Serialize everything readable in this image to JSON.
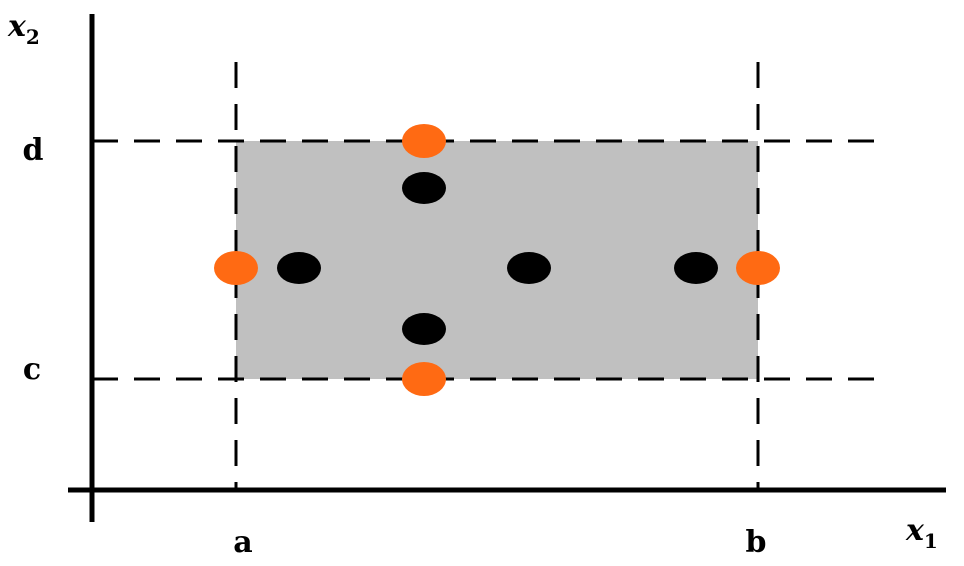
{
  "labels": {
    "x1_main": "x",
    "x1_sub": "1",
    "x2_main": "x",
    "x2_sub": "2",
    "a": "a",
    "b": "b",
    "c": "c",
    "d": "d"
  },
  "colors": {
    "region_fill": "#c0c0c0",
    "interior_point": "#000000",
    "boundary_point": "#ff6a13"
  },
  "points": {
    "interior_count": 5,
    "boundary_count": 4
  }
}
